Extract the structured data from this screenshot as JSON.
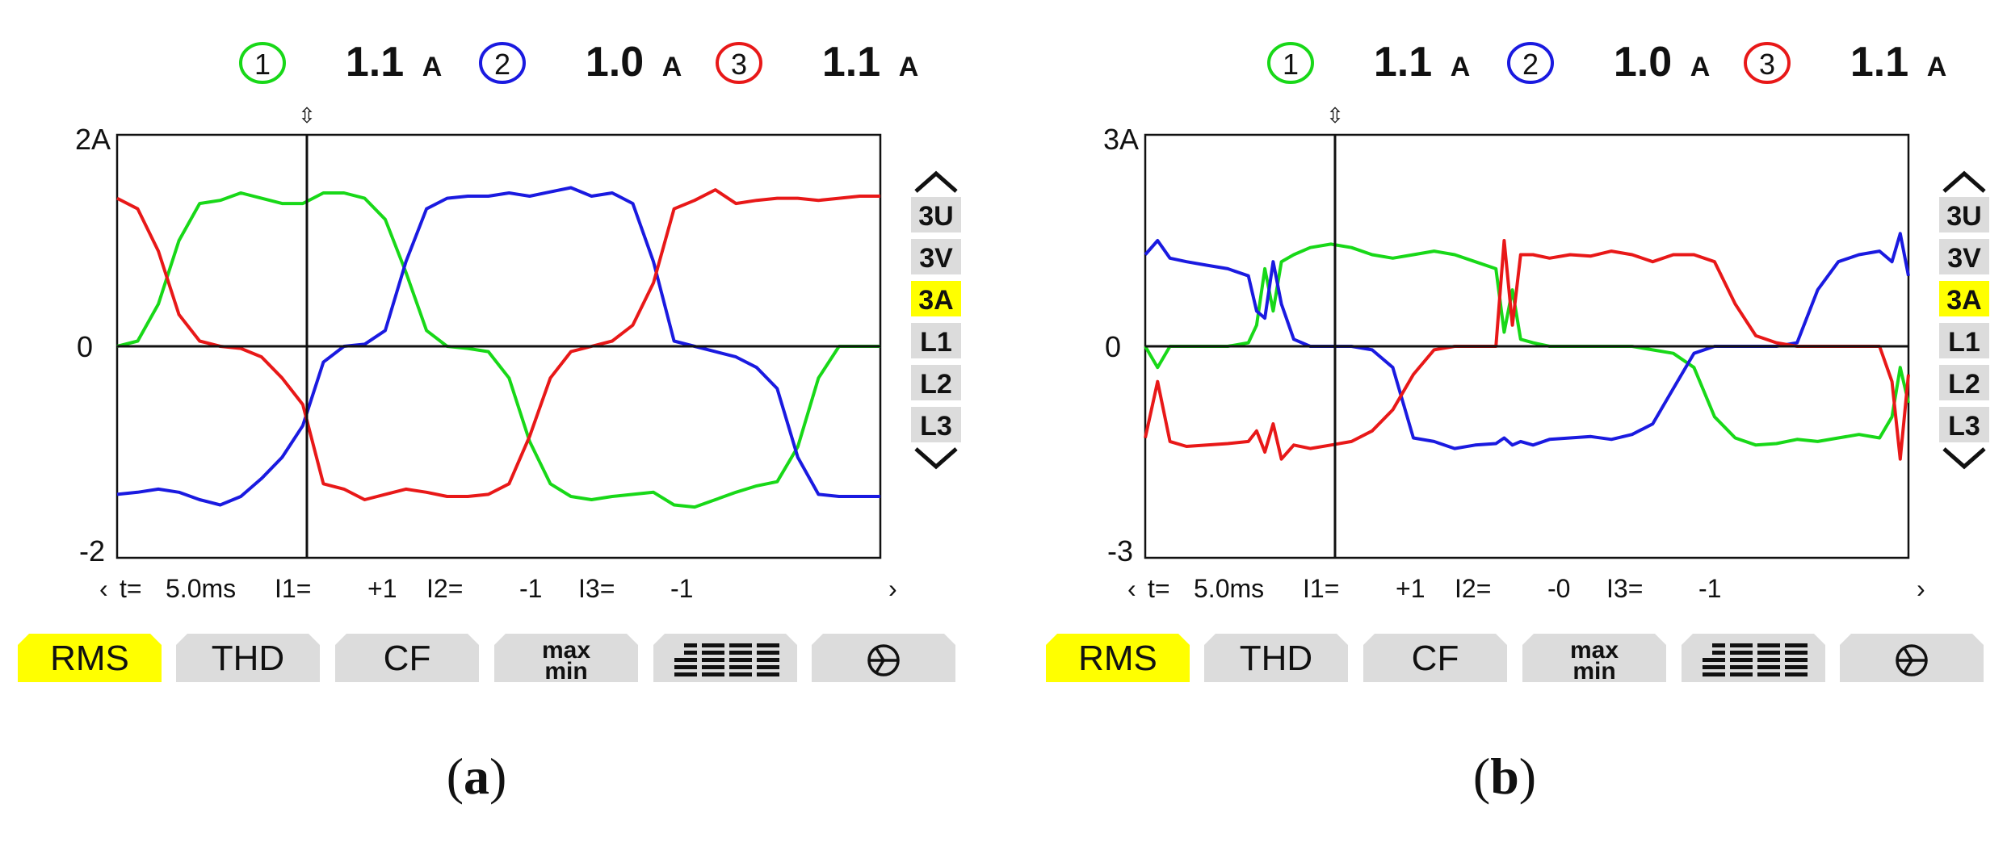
{
  "colors": {
    "phase1": "#18d818",
    "phase2": "#1a1ae0",
    "phase3": "#e81818",
    "highlight": "#ffff00",
    "button": "#dcdcdc"
  },
  "panels": [
    {
      "id": "a",
      "caption": "a",
      "header": {
        "items": [
          {
            "num": "1",
            "value": "1.1",
            "unit": "A",
            "color": "#18d818"
          },
          {
            "num": "2",
            "value": "1.0",
            "unit": "A",
            "color": "#1a1ae0"
          },
          {
            "num": "3",
            "value": "1.1",
            "unit": "A",
            "color": "#e81818"
          }
        ]
      },
      "cursor_marker": "⇳",
      "y_labels": {
        "top": "2A",
        "zero": "0",
        "bottom": "-2"
      },
      "side_buttons": [
        "3U",
        "3V",
        "3A",
        "L1",
        "L2",
        "L3"
      ],
      "active_side": "3A",
      "status": {
        "left_arrow": "‹",
        "t_label": "t=",
        "t_value": "5.0ms",
        "i1_label": "I1=",
        "i1_value": "+1",
        "i2_label": "I2=",
        "i2_value": "-1",
        "i3_label": "I3=",
        "i3_value": "-1",
        "right_arrow": "›"
      },
      "softkeys": [
        "RMS",
        "THD",
        "CF",
        "max/min",
        "harmonics-icon",
        "vector-icon"
      ],
      "active_softkey": "RMS"
    },
    {
      "id": "b",
      "caption": "b",
      "header": {
        "items": [
          {
            "num": "1",
            "value": "1.1",
            "unit": "A",
            "color": "#18d818"
          },
          {
            "num": "2",
            "value": "1.0",
            "unit": "A",
            "color": "#1a1ae0"
          },
          {
            "num": "3",
            "value": "1.1",
            "unit": "A",
            "color": "#e81818"
          }
        ]
      },
      "cursor_marker": "⇳",
      "y_labels": {
        "top": "3A",
        "zero": "0",
        "bottom": "-3"
      },
      "side_buttons": [
        "3U",
        "3V",
        "3A",
        "L1",
        "L2",
        "L3"
      ],
      "active_side": "3A",
      "status": {
        "left_arrow": "‹",
        "t_label": "t=",
        "t_value": "5.0ms",
        "i1_label": "I1=",
        "i1_value": "+1",
        "i2_label": "I2=",
        "i2_value": "-0",
        "i3_label": "I3=",
        "i3_value": "-1",
        "right_arrow": "›"
      },
      "softkeys": [
        "RMS",
        "THD",
        "CF",
        "max/min",
        "harmonics-icon",
        "vector-icon"
      ],
      "active_softkey": "RMS"
    }
  ],
  "chart_data": [
    {
      "type": "line",
      "ylim": [
        -2,
        2
      ],
      "xlim": [
        0,
        18.5
      ],
      "cursor_x": 4.6,
      "x": [
        0,
        0.5,
        1,
        1.5,
        2,
        2.5,
        3,
        3.5,
        4,
        4.5,
        5,
        5.5,
        6,
        6.5,
        7,
        7.5,
        8,
        8.5,
        9,
        9.5,
        10,
        10.5,
        11,
        11.5,
        12,
        12.5,
        13,
        13.5,
        14,
        14.5,
        15,
        15.5,
        16,
        16.5,
        17,
        17.5,
        18,
        18.5
      ],
      "series": [
        {
          "name": "1",
          "values": [
            0,
            0.05,
            0.4,
            1.0,
            1.35,
            1.38,
            1.45,
            1.4,
            1.35,
            1.35,
            1.45,
            1.45,
            1.4,
            1.2,
            0.7,
            0.15,
            0,
            -0.02,
            -0.05,
            -0.3,
            -0.9,
            -1.3,
            -1.42,
            -1.45,
            -1.42,
            -1.4,
            -1.38,
            -1.5,
            -1.52,
            -1.45,
            -1.38,
            -1.32,
            -1.28,
            -0.95,
            -0.3,
            0,
            0,
            0
          ]
        },
        {
          "name": "2",
          "values": [
            -1.4,
            -1.38,
            -1.35,
            -1.38,
            -1.45,
            -1.5,
            -1.42,
            -1.25,
            -1.05,
            -0.75,
            -0.15,
            0,
            0.02,
            0.15,
            0.8,
            1.3,
            1.4,
            1.42,
            1.42,
            1.45,
            1.42,
            1.46,
            1.5,
            1.42,
            1.45,
            1.35,
            0.8,
            0.05,
            0,
            -0.05,
            -0.1,
            -0.2,
            -0.4,
            -1.05,
            -1.4,
            -1.42,
            -1.42,
            -1.42
          ]
        },
        {
          "name": "3",
          "values": [
            1.4,
            1.3,
            0.9,
            0.3,
            0.05,
            0,
            -0.02,
            -0.1,
            -0.3,
            -0.55,
            -1.3,
            -1.35,
            -1.45,
            -1.4,
            -1.35,
            -1.38,
            -1.42,
            -1.42,
            -1.4,
            -1.3,
            -0.85,
            -0.3,
            -0.05,
            0,
            0.05,
            0.2,
            0.6,
            1.3,
            1.38,
            1.48,
            1.35,
            1.38,
            1.4,
            1.4,
            1.38,
            1.4,
            1.42,
            1.42
          ]
        }
      ]
    },
    {
      "type": "line",
      "ylim": [
        -3,
        3
      ],
      "xlim": [
        0,
        18.5
      ],
      "cursor_x": 4.6,
      "x": [
        0,
        0.3,
        0.6,
        1,
        1.5,
        2,
        2.5,
        2.7,
        2.9,
        3.1,
        3.3,
        3.6,
        4,
        4.5,
        5,
        5.5,
        6,
        6.5,
        7,
        7.5,
        8,
        8.5,
        8.7,
        8.9,
        9.1,
        9.4,
        9.8,
        10.3,
        10.8,
        11.3,
        11.8,
        12.3,
        12.8,
        13.3,
        13.8,
        14.3,
        14.8,
        15.3,
        15.8,
        16.3,
        16.8,
        17.3,
        17.8,
        18.1,
        18.3,
        18.5
      ],
      "series": [
        {
          "name": "1",
          "values": [
            0,
            -0.3,
            0,
            0,
            0,
            0,
            0.05,
            0.3,
            1.1,
            0.5,
            1.2,
            1.3,
            1.4,
            1.45,
            1.4,
            1.3,
            1.25,
            1.3,
            1.35,
            1.3,
            1.2,
            1.1,
            0.2,
            0.8,
            0.1,
            0.05,
            0,
            0,
            0,
            0,
            0,
            -0.05,
            -0.1,
            -0.3,
            -1.0,
            -1.3,
            -1.4,
            -1.38,
            -1.32,
            -1.35,
            -1.3,
            -1.25,
            -1.3,
            -1.0,
            -0.3,
            -0.8
          ]
        },
        {
          "name": "2",
          "values": [
            1.3,
            1.5,
            1.25,
            1.2,
            1.15,
            1.1,
            1.0,
            0.5,
            0.4,
            1.2,
            0.6,
            0.1,
            0,
            0,
            0,
            -0.05,
            -0.3,
            -1.3,
            -1.35,
            -1.45,
            -1.4,
            -1.38,
            -1.3,
            -1.4,
            -1.35,
            -1.4,
            -1.32,
            -1.3,
            -1.28,
            -1.32,
            -1.25,
            -1.1,
            -0.6,
            -0.1,
            0,
            0,
            0,
            0,
            0.05,
            0.8,
            1.2,
            1.3,
            1.35,
            1.2,
            1.6,
            1.0
          ]
        },
        {
          "name": "3",
          "values": [
            -1.3,
            -0.5,
            -1.35,
            -1.42,
            -1.4,
            -1.38,
            -1.35,
            -1.2,
            -1.5,
            -1.1,
            -1.6,
            -1.4,
            -1.45,
            -1.4,
            -1.35,
            -1.2,
            -0.9,
            -0.4,
            -0.05,
            0,
            0,
            0,
            1.5,
            0.3,
            1.3,
            1.3,
            1.25,
            1.3,
            1.28,
            1.35,
            1.3,
            1.2,
            1.3,
            1.3,
            1.2,
            0.6,
            0.15,
            0.05,
            0,
            0,
            0,
            0,
            0,
            -0.5,
            -1.6,
            -0.4
          ]
        }
      ]
    }
  ]
}
